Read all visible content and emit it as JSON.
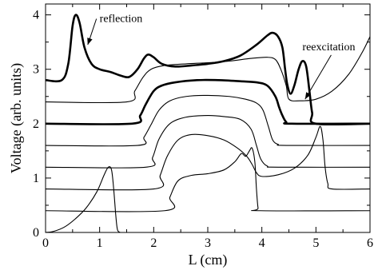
{
  "chart_data": {
    "type": "line",
    "title": "",
    "xlabel": "L (cm)",
    "ylabel": "Voltage (arb. units)",
    "xlim": [
      0,
      6
    ],
    "ylim": [
      0,
      4.2
    ],
    "x_ticks": [
      0,
      1,
      2,
      3,
      4,
      5,
      6
    ],
    "y_ticks": [
      0,
      1,
      2,
      3,
      4
    ],
    "grid": false,
    "legend": "none",
    "series": [
      {
        "style": "thick",
        "points": [
          [
            0,
            2.8
          ],
          [
            0.3,
            2.8
          ],
          [
            0.42,
            3.1
          ],
          [
            0.5,
            3.8
          ],
          [
            0.56,
            4.0
          ],
          [
            0.63,
            3.85
          ],
          [
            0.72,
            3.4
          ],
          [
            0.85,
            3.1
          ],
          [
            1.0,
            3.0
          ],
          [
            1.2,
            2.95
          ],
          [
            1.4,
            2.88
          ],
          [
            1.55,
            2.86
          ],
          [
            1.7,
            3.0
          ],
          [
            1.82,
            3.2
          ],
          [
            1.9,
            3.27
          ],
          [
            2.0,
            3.22
          ],
          [
            2.15,
            3.1
          ],
          [
            2.4,
            3.05
          ],
          [
            2.7,
            3.07
          ],
          [
            3.0,
            3.1
          ],
          [
            3.3,
            3.15
          ],
          [
            3.6,
            3.25
          ],
          [
            3.9,
            3.45
          ],
          [
            4.1,
            3.62
          ],
          [
            4.2,
            3.67
          ],
          [
            4.3,
            3.6
          ],
          [
            4.38,
            3.4
          ],
          [
            4.43,
            3.0
          ],
          [
            4.47,
            2.72
          ],
          [
            4.53,
            2.55
          ],
          [
            4.6,
            2.7
          ],
          [
            4.68,
            3.0
          ],
          [
            4.75,
            3.15
          ],
          [
            4.82,
            3.05
          ],
          [
            4.88,
            2.6
          ],
          [
            4.93,
            2.2
          ],
          [
            5.0,
            2.0
          ],
          [
            6.0,
            2.0
          ]
        ]
      },
      {
        "style": "thin",
        "points": [
          [
            0,
            2.4
          ],
          [
            1.5,
            2.4
          ],
          [
            1.65,
            2.6
          ],
          [
            1.8,
            2.85
          ],
          [
            1.95,
            3.0
          ],
          [
            2.2,
            3.07
          ],
          [
            2.6,
            3.1
          ],
          [
            3.0,
            3.12
          ],
          [
            3.4,
            3.15
          ],
          [
            3.8,
            3.2
          ],
          [
            4.1,
            3.22
          ],
          [
            4.25,
            3.18
          ],
          [
            4.35,
            3.0
          ],
          [
            4.45,
            2.7
          ],
          [
            4.5,
            2.45
          ],
          [
            4.7,
            2.42
          ],
          [
            5.0,
            2.45
          ],
          [
            5.3,
            2.6
          ],
          [
            5.6,
            2.9
          ],
          [
            5.85,
            3.3
          ],
          [
            6.0,
            3.6
          ]
        ]
      },
      {
        "style": "thick",
        "points": [
          [
            0,
            2.0
          ],
          [
            1.6,
            2.0
          ],
          [
            1.75,
            2.15
          ],
          [
            1.85,
            2.35
          ],
          [
            2.0,
            2.6
          ],
          [
            2.15,
            2.7
          ],
          [
            2.4,
            2.76
          ],
          [
            2.8,
            2.8
          ],
          [
            3.2,
            2.8
          ],
          [
            3.6,
            2.78
          ],
          [
            3.9,
            2.76
          ],
          [
            4.1,
            2.7
          ],
          [
            4.25,
            2.5
          ],
          [
            4.32,
            2.3
          ],
          [
            4.38,
            2.15
          ],
          [
            4.45,
            2.03
          ],
          [
            4.55,
            2.0
          ],
          [
            6.0,
            2.0
          ]
        ]
      },
      {
        "style": "thin",
        "points": [
          [
            0,
            1.6
          ],
          [
            1.7,
            1.6
          ],
          [
            1.82,
            1.75
          ],
          [
            1.95,
            1.98
          ],
          [
            2.1,
            2.25
          ],
          [
            2.3,
            2.42
          ],
          [
            2.6,
            2.5
          ],
          [
            3.0,
            2.52
          ],
          [
            3.4,
            2.5
          ],
          [
            3.7,
            2.45
          ],
          [
            3.9,
            2.38
          ],
          [
            4.02,
            2.25
          ],
          [
            4.12,
            1.95
          ],
          [
            4.2,
            1.7
          ],
          [
            4.3,
            1.62
          ],
          [
            4.45,
            1.6
          ],
          [
            6.0,
            1.6
          ]
        ]
      },
      {
        "style": "thin",
        "points": [
          [
            0,
            1.2
          ],
          [
            1.85,
            1.2
          ],
          [
            1.98,
            1.38
          ],
          [
            2.1,
            1.72
          ],
          [
            2.3,
            2.0
          ],
          [
            2.6,
            2.12
          ],
          [
            3.0,
            2.15
          ],
          [
            3.3,
            2.13
          ],
          [
            3.6,
            2.08
          ],
          [
            3.8,
            1.9
          ],
          [
            3.9,
            1.6
          ],
          [
            3.98,
            1.35
          ],
          [
            4.1,
            1.22
          ],
          [
            4.3,
            1.2
          ],
          [
            6.0,
            1.2
          ]
        ]
      },
      {
        "style": "thin",
        "points": [
          [
            0,
            0.8
          ],
          [
            2.0,
            0.8
          ],
          [
            2.12,
            1.05
          ],
          [
            2.25,
            1.4
          ],
          [
            2.45,
            1.7
          ],
          [
            2.7,
            1.8
          ],
          [
            3.0,
            1.78
          ],
          [
            3.3,
            1.7
          ],
          [
            3.55,
            1.55
          ],
          [
            3.72,
            1.4
          ],
          [
            3.82,
            1.25
          ],
          [
            3.9,
            1.1
          ],
          [
            4.0,
            1.03
          ],
          [
            4.3,
            1.06
          ],
          [
            4.6,
            1.18
          ],
          [
            4.85,
            1.42
          ],
          [
            5.0,
            1.75
          ],
          [
            5.08,
            1.95
          ],
          [
            5.13,
            1.7
          ],
          [
            5.17,
            1.2
          ],
          [
            5.22,
            0.9
          ],
          [
            5.3,
            0.8
          ],
          [
            6.0,
            0.8
          ]
        ]
      },
      {
        "style": "thin",
        "points": [
          [
            0,
            0.4
          ],
          [
            2.2,
            0.4
          ],
          [
            2.3,
            0.65
          ],
          [
            2.45,
            0.95
          ],
          [
            2.7,
            1.05
          ],
          [
            3.0,
            1.08
          ],
          [
            3.3,
            1.15
          ],
          [
            3.5,
            1.3
          ],
          [
            3.62,
            1.45
          ],
          [
            3.7,
            1.4
          ],
          [
            3.77,
            1.5
          ],
          [
            3.82,
            1.55
          ],
          [
            3.87,
            1.3
          ],
          [
            3.9,
            0.8
          ],
          [
            3.93,
            0.45
          ],
          [
            3.97,
            0.4
          ],
          [
            6.0,
            0.4
          ]
        ]
      },
      {
        "style": "thin",
        "points": [
          [
            0,
            0.0
          ],
          [
            0.15,
            0.02
          ],
          [
            0.35,
            0.1
          ],
          [
            0.55,
            0.25
          ],
          [
            0.75,
            0.45
          ],
          [
            0.95,
            0.75
          ],
          [
            1.08,
            1.05
          ],
          [
            1.16,
            1.2
          ],
          [
            1.22,
            1.15
          ],
          [
            1.26,
            0.8
          ],
          [
            1.3,
            0.3
          ],
          [
            1.33,
            0.05
          ],
          [
            1.38,
            0.0
          ]
        ]
      }
    ],
    "annotations": [
      {
        "text": "reflection",
        "anchor": [
          1.0,
          3.87
        ],
        "arrow_to": [
          0.78,
          3.45
        ]
      },
      {
        "text": "reexcitation",
        "anchor": [
          4.75,
          3.35
        ],
        "arrow_to": [
          4.8,
          2.45
        ]
      }
    ]
  }
}
